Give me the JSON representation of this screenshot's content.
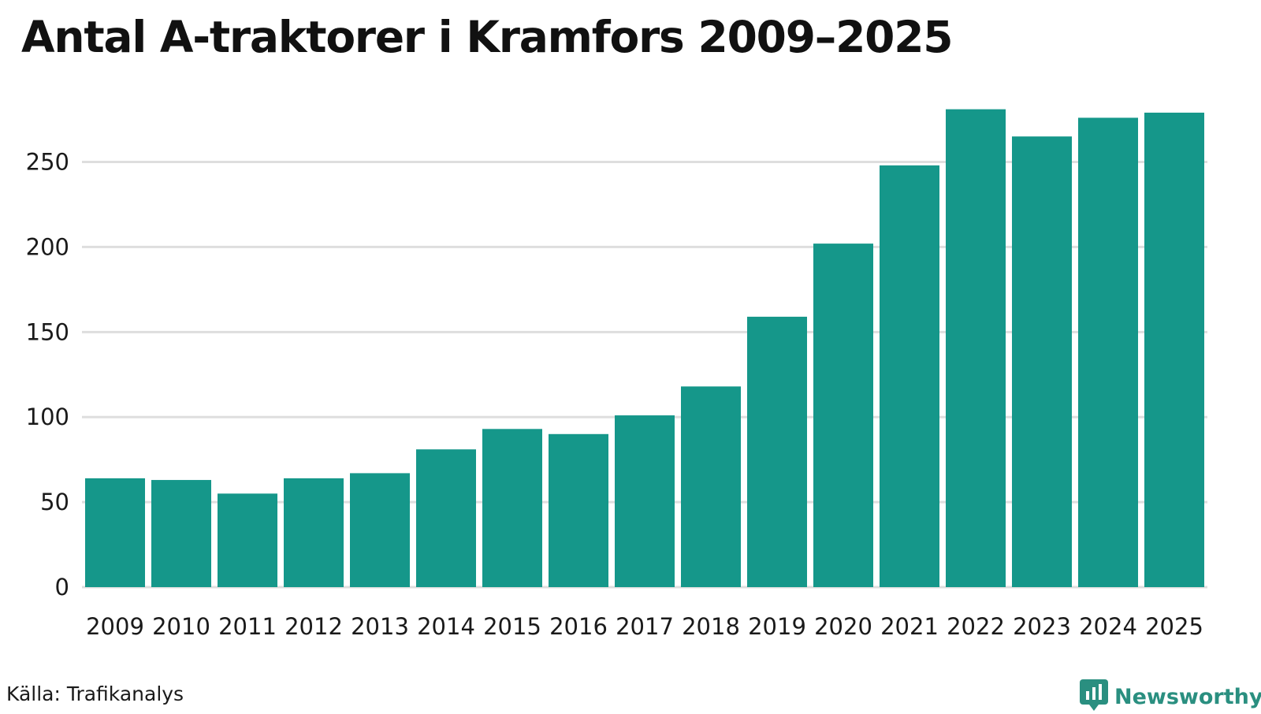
{
  "title": "Antal A-traktorer i Kramfors 2009–2025",
  "source": "Källa: Trafikanalys",
  "brand": {
    "name": "Newsworthy",
    "icon": "newsworthy-logo-icon",
    "color": "#2a8f80"
  },
  "colors": {
    "bar": "#15978a",
    "grid": "#dedede"
  },
  "chart_data": {
    "type": "bar",
    "title": "Antal A-traktorer i Kramfors 2009–2025",
    "xlabel": "",
    "ylabel": "",
    "categories": [
      "2009",
      "2010",
      "2011",
      "2012",
      "2013",
      "2014",
      "2015",
      "2016",
      "2017",
      "2018",
      "2019",
      "2020",
      "2021",
      "2022",
      "2023",
      "2024",
      "2025"
    ],
    "values": [
      64,
      63,
      55,
      64,
      67,
      81,
      93,
      90,
      101,
      118,
      159,
      202,
      248,
      281,
      265,
      276,
      279
    ],
    "ylim": [
      0,
      285
    ],
    "yticks": [
      0,
      50,
      100,
      150,
      200,
      250
    ],
    "grid": true,
    "legend": "none"
  }
}
